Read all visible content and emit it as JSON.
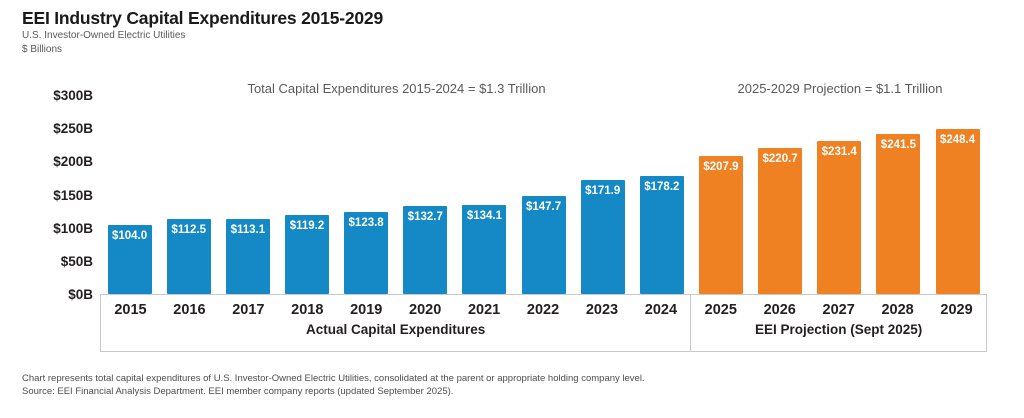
{
  "header": {
    "title": "EEI Industry Capital Expenditures 2015-2029",
    "subtitle": "U.S. Investor-Owned Electric Utilities",
    "units": "$ Billions"
  },
  "annotations": {
    "actual_total": "Total Capital Expenditures 2015-2024 = $1.3 Trillion",
    "projection_total": "2025-2029 Projection = $1.1 Trillion"
  },
  "chart_data": {
    "type": "bar",
    "title": "EEI Industry Capital Expenditures 2015-2029",
    "ylabel": "$ Billions",
    "ylim": [
      0,
      300
    ],
    "grid": false,
    "yticks": [
      {
        "label": "$300B",
        "value": 300
      },
      {
        "label": "$250B",
        "value": 250
      },
      {
        "label": "$200B",
        "value": 200
      },
      {
        "label": "$150B",
        "value": 150
      },
      {
        "label": "$100B",
        "value": 100
      },
      {
        "label": "$50B",
        "value": 50
      },
      {
        "label": "$0B",
        "value": 0
      }
    ],
    "categories": [
      "2015",
      "2016",
      "2017",
      "2018",
      "2019",
      "2020",
      "2021",
      "2022",
      "2023",
      "2024",
      "2025",
      "2026",
      "2027",
      "2028",
      "2029"
    ],
    "series": [
      {
        "name": "Actual Capital Expenditures",
        "color": "#1589c5",
        "years": [
          "2015",
          "2016",
          "2017",
          "2018",
          "2019",
          "2020",
          "2021",
          "2022",
          "2023",
          "2024"
        ],
        "values": [
          104.0,
          112.5,
          113.1,
          119.2,
          123.8,
          132.7,
          134.1,
          147.7,
          171.9,
          178.2
        ]
      },
      {
        "name": "EEI Projection (Sept 2025)",
        "color": "#f08122",
        "years": [
          "2025",
          "2026",
          "2027",
          "2028",
          "2029"
        ],
        "values": [
          207.9,
          220.7,
          231.4,
          241.5,
          248.4
        ]
      }
    ],
    "value_label_prefix": "$",
    "legend_position": "group labels inside x-axis box"
  },
  "footer": {
    "note": "Chart represents total capital expenditures of U.S. Investor-Owned Electric Utilities, consolidated at the parent or appropriate holding company level.",
    "source": "Source: EEI Financial Analysis Department. EEI member company reports (updated September 2025)."
  }
}
